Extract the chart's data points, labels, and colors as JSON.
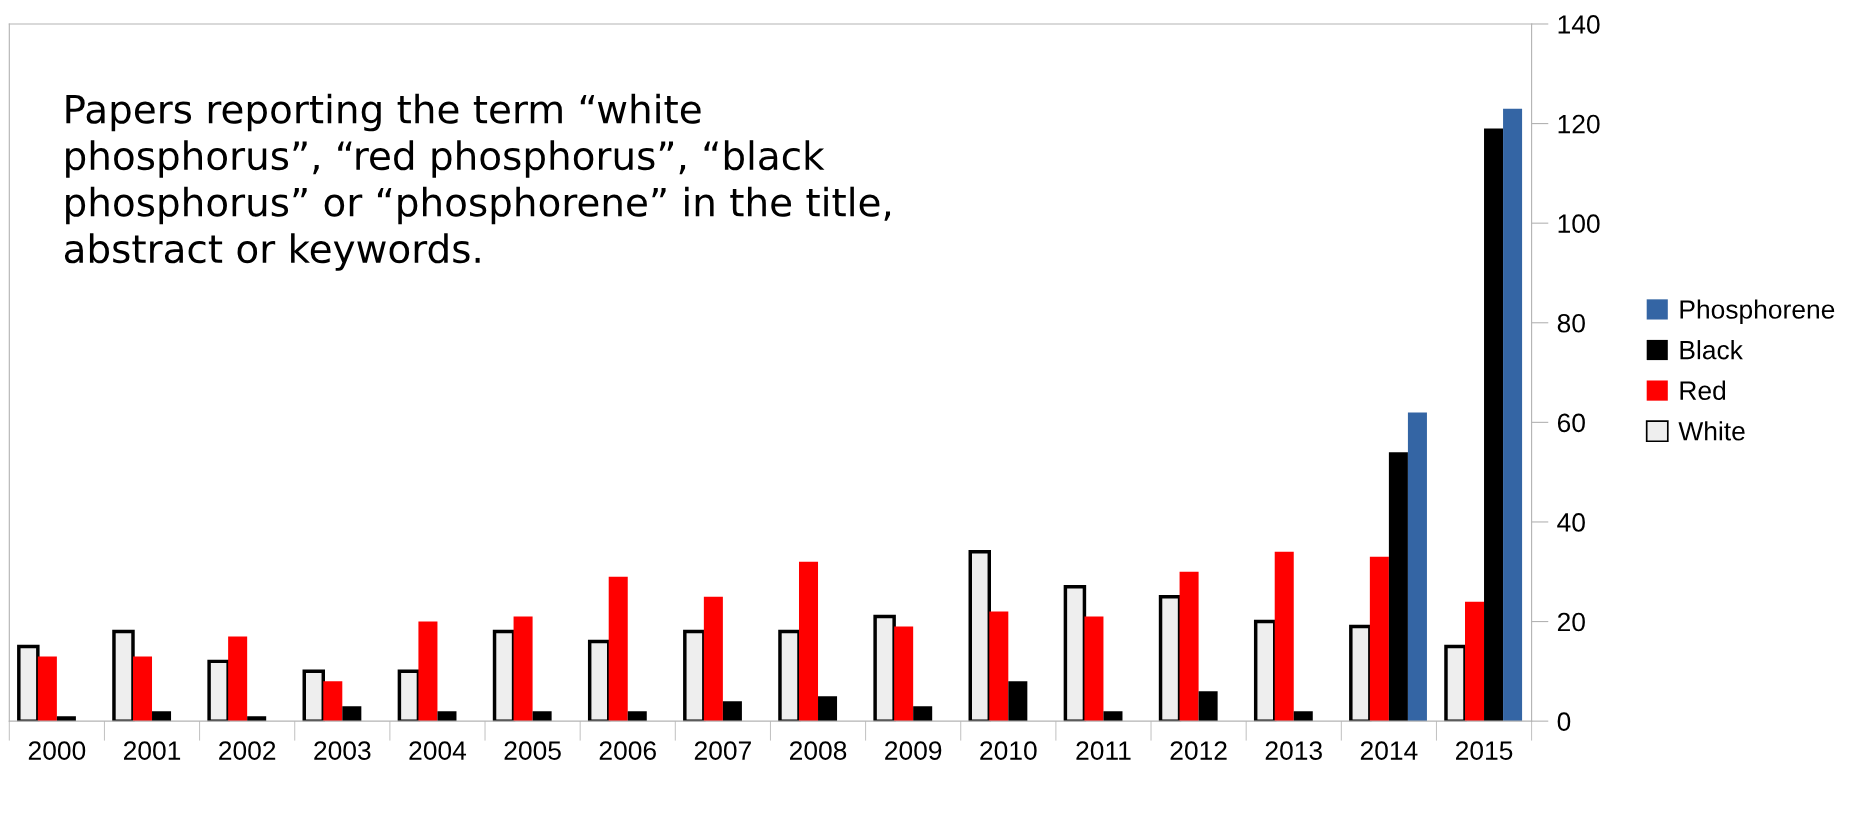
{
  "chart_data": {
    "type": "bar",
    "title": "Papers reporting the term “white phosphorus”, “red phosphorus”, “black phosphorus” or “phosphorene” in the title, abstract or keywords.",
    "categories": [
      "2000",
      "2001",
      "2002",
      "2003",
      "2004",
      "2005",
      "2006",
      "2007",
      "2008",
      "2009",
      "2010",
      "2011",
      "2012",
      "2013",
      "2014",
      "2015"
    ],
    "series": [
      {
        "name": "White",
        "color": "#eeeeee",
        "values": [
          15,
          18,
          12,
          10,
          10,
          18,
          16,
          18,
          18,
          21,
          34,
          27,
          25,
          20,
          19,
          15
        ]
      },
      {
        "name": "Red",
        "color": "#ff0000",
        "values": [
          13,
          13,
          17,
          8,
          20,
          21,
          29,
          25,
          32,
          19,
          22,
          21,
          30,
          34,
          33,
          24
        ]
      },
      {
        "name": "Black",
        "color": "#000000",
        "values": [
          1,
          2,
          1,
          3,
          2,
          2,
          2,
          4,
          5,
          3,
          8,
          2,
          6,
          2,
          54,
          119
        ]
      },
      {
        "name": "Phosphorene",
        "color": "#3465a4",
        "values": [
          null,
          null,
          null,
          null,
          null,
          null,
          null,
          null,
          null,
          null,
          null,
          null,
          null,
          null,
          62,
          123
        ]
      }
    ],
    "ylim": [
      0,
      140
    ],
    "yticks": [
      0,
      20,
      40,
      60,
      80,
      100,
      120,
      140
    ],
    "grid": false,
    "legend": "right"
  }
}
